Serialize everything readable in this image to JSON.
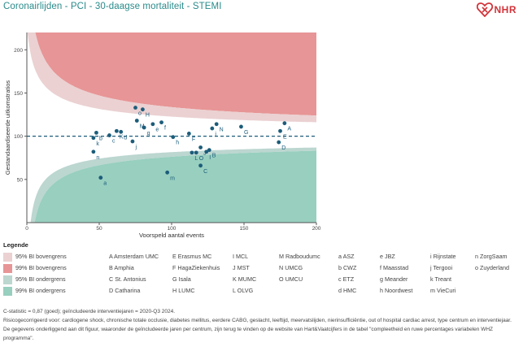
{
  "header": {
    "title": "Coronairlijden - PCI - 30-daagse mortaliteit - STEMI",
    "logo_text": "NHR",
    "logo_color": "#d2333a"
  },
  "chart_data": {
    "type": "scatter",
    "title": "Coronairlijden - PCI - 30-daagse mortaliteit - STEMI",
    "xlabel": "Voorspeld aantal events",
    "ylabel": "Gestandaardiseerde uitkomstratios",
    "xlim": [
      0,
      200
    ],
    "ylim": [
      0,
      220
    ],
    "xticks": [
      0,
      50,
      100,
      150,
      200
    ],
    "yticks": [
      50,
      100,
      150,
      200
    ],
    "reference_line": 100,
    "colors": {
      "upper_99": "#e79596",
      "upper_95": "#ebd1d2",
      "lower_95": "#bcd6d0",
      "lower_99": "#98cfbf",
      "points": "#1c5c7a",
      "reference": "#1c5c7a"
    },
    "points": [
      {
        "label": "A",
        "x": 178,
        "y": 115
      },
      {
        "label": "B",
        "x": 126,
        "y": 84
      },
      {
        "label": "C",
        "x": 120,
        "y": 66
      },
      {
        "label": "D",
        "x": 174,
        "y": 93
      },
      {
        "label": "E",
        "x": 175,
        "y": 106
      },
      {
        "label": "F",
        "x": 112,
        "y": 103
      },
      {
        "label": "G",
        "x": 148,
        "y": 111
      },
      {
        "label": "H",
        "x": 80,
        "y": 131
      },
      {
        "label": "I",
        "x": 124,
        "y": 82
      },
      {
        "label": "J",
        "x": 120,
        "y": 87
      },
      {
        "label": "K",
        "x": 62,
        "y": 106
      },
      {
        "label": "L",
        "x": 114,
        "y": 81
      },
      {
        "label": "M",
        "x": 76,
        "y": 118
      },
      {
        "label": "N",
        "x": 131,
        "y": 114
      },
      {
        "label": "O",
        "x": 117,
        "y": 81
      },
      {
        "label": "a",
        "x": 51,
        "y": 52
      },
      {
        "label": "b",
        "x": 48,
        "y": 104
      },
      {
        "label": "c",
        "x": 57,
        "y": 101
      },
      {
        "label": "d",
        "x": 65,
        "y": 105
      },
      {
        "label": "e",
        "x": 87,
        "y": 114
      },
      {
        "label": "f",
        "x": 93,
        "y": 116
      },
      {
        "label": "g",
        "x": 81,
        "y": 110
      },
      {
        "label": "h",
        "x": 101,
        "y": 99
      },
      {
        "label": "i",
        "x": 128,
        "y": 109
      },
      {
        "label": "j",
        "x": 73,
        "y": 94
      },
      {
        "label": "k",
        "x": 46,
        "y": 98
      },
      {
        "label": "m",
        "x": 97,
        "y": 58
      },
      {
        "label": "n",
        "x": 46,
        "y": 82
      },
      {
        "label": "o",
        "x": 75,
        "y": 133
      }
    ]
  },
  "legend": {
    "title": "Legende",
    "bands": [
      {
        "label": "95% BI bovengrens",
        "color": "#ebd1d2"
      },
      {
        "label": "99% BI bovengrens",
        "color": "#e79596"
      },
      {
        "label": "95% BI ondergrens",
        "color": "#bcd6d0"
      },
      {
        "label": "99% BI ondergrens",
        "color": "#98cfbf"
      }
    ],
    "hospital_columns": [
      [
        "A Amsterdam UMC",
        "B Amphia",
        "C St. Antonius",
        "D Catharina"
      ],
      [
        "E Erasmus MC",
        "F HagaZiekenhuis",
        "G Isala",
        "H LUMC"
      ],
      [
        "I MCL",
        "J MST",
        "K MUMC",
        "L OLVG"
      ],
      [
        "M Radboudumc",
        "N UMCG",
        "O UMCU"
      ],
      [
        "a ASZ",
        "b CWZ",
        "c ETZ",
        "d HMC"
      ],
      [
        "e JBZ",
        "f Maasstad",
        "g Meander",
        "h Noordwest"
      ],
      [
        "i Rijnstate",
        "j Tergooi",
        "k Treant",
        "m VieCuri"
      ],
      [
        "n ZorgSaam",
        "o Zuyderland"
      ]
    ]
  },
  "notes": [
    "C-statistic = 0,87 (goed); geïncludeerde interventiejaren = 2020-Q3 2024.",
    "Risicogecorrigeerd voor: cardiogene shock, chronische totale occlusie, diabetes mellitus, eerdere CABG, geslacht, leeftijd, meervatslijden, nierinsufficiëntie, out of hospital cardiac arrest, type centrum en interventiejaar.",
    "De gegevens onderliggend aan dit figuur, waaronder de geïncludeerde jaren per centrum, zijn terug te vinden op de website van Hart&Vaatcijfers in de tabel \"compleetheid en ruwe percentages variabelen WHZ programma\"."
  ]
}
